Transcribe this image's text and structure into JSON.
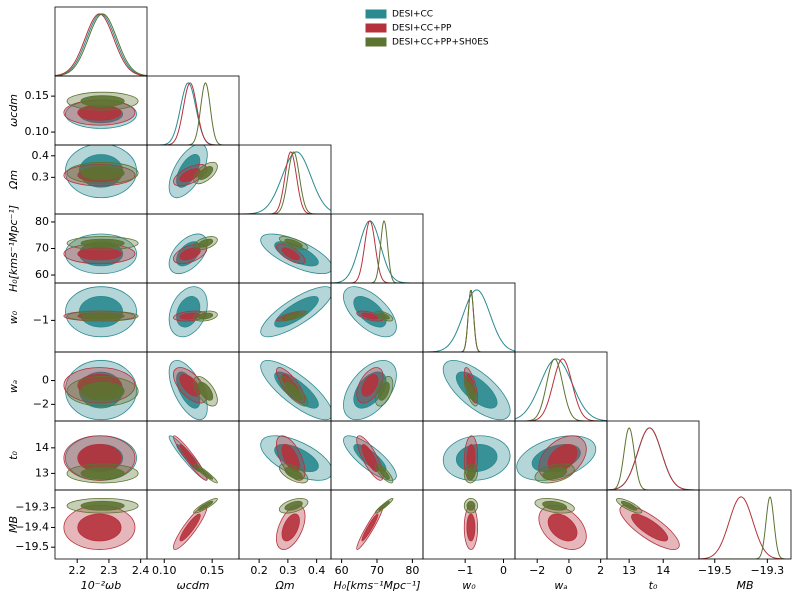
{
  "chart_data": {
    "type": "corner",
    "parameters": [
      {
        "label": "10⁻²ωb",
        "lim": [
          2.13,
          2.42
        ],
        "xticks": [
          2.2,
          2.3,
          2.4
        ],
        "yticks": []
      },
      {
        "label": "ωcdm",
        "lim": [
          0.082,
          0.178
        ],
        "xticks": [
          {
            "value": 0.1,
            "label": "0.10"
          },
          0.15
        ],
        "yticks": [
          {
            "value": 0.1,
            "label": "0.10"
          },
          0.15
        ]
      },
      {
        "label": "Ωm",
        "lim": [
          0.13,
          0.45
        ],
        "xticks": [
          0.2,
          0.3,
          0.4
        ],
        "yticks": [
          0.3,
          0.4
        ]
      },
      {
        "label": "H₀[kms⁻¹Mpc⁻¹]",
        "lim": [
          57,
          83
        ],
        "xticks": [
          60,
          70,
          80
        ],
        "yticks": [
          60,
          70,
          80
        ]
      },
      {
        "label": "w₀",
        "lim": [
          -2.1,
          0.3
        ],
        "xticks": [
          {
            "value": -1,
            "label": "−1"
          },
          0
        ],
        "yticks": [
          {
            "value": -1,
            "label": "−1"
          }
        ]
      },
      {
        "label": "wₐ",
        "lim": [
          -3.4,
          2.4
        ],
        "xticks": [
          {
            "value": -2,
            "label": "−2"
          },
          0,
          2
        ],
        "yticks": [
          {
            "value": -2,
            "label": "−2"
          },
          0
        ]
      },
      {
        "label": "t₀",
        "lim": [
          12.35,
          15.05
        ],
        "xticks": [
          13,
          14
        ],
        "yticks": [
          13,
          14
        ]
      },
      {
        "label": "MB",
        "lim": [
          -19.56,
          -19.21
        ],
        "xticks": [
          {
            "value": -19.5,
            "label": "−19.5"
          },
          {
            "value": -19.3,
            "label": "−19.3"
          }
        ],
        "yticks": [
          {
            "value": -19.5,
            "label": "−19.5"
          },
          {
            "value": -19.4,
            "label": "−19.4"
          },
          {
            "value": -19.3,
            "label": "−19.3"
          }
        ]
      }
    ],
    "series": [
      {
        "name": "DESI+CC",
        "color": "#2a8a8f",
        "values": [
          2.275,
          0.125,
          0.33,
          68,
          -0.7,
          -0.8,
          13.6,
          null
        ],
        "sigmas": [
          0.045,
          0.008,
          0.05,
          3,
          0.35,
          1.0,
          0.35,
          null
        ]
      },
      {
        "name": "DESI+CC+PP",
        "color": "#b5323d",
        "values": [
          2.27,
          0.127,
          0.31,
          68,
          -0.85,
          -0.4,
          13.6,
          -19.4
        ],
        "sigmas": [
          0.045,
          0.007,
          0.02,
          1.5,
          0.07,
          0.6,
          0.35,
          0.045
        ]
      },
      {
        "name": "DESI+CC+PP+SH0ES",
        "color": "#5c7331",
        "values": [
          2.28,
          0.143,
          0.32,
          72,
          -0.85,
          -0.9,
          13.0,
          -19.29
        ],
        "sigmas": [
          0.045,
          0.005,
          0.02,
          1,
          0.07,
          0.5,
          0.15,
          0.015
        ]
      }
    ],
    "correlations": [
      [],
      [
        0
      ],
      [
        0,
        0.6
      ],
      [
        0,
        0.5,
        -0.7
      ],
      [
        0,
        0.3,
        0.8,
        -0.6
      ],
      [
        0,
        -0.6,
        -0.8,
        0.5,
        -0.7
      ],
      [
        0,
        -0.95,
        -0.6,
        -0.8,
        0.1,
        0.4
      ],
      [
        0,
        0.9,
        0.5,
        0.95,
        0,
        -0.4,
        -0.8
      ]
    ]
  }
}
